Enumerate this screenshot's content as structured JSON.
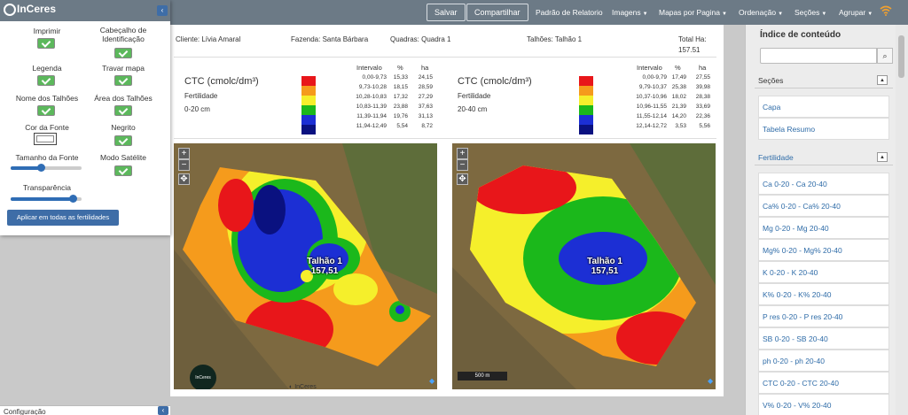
{
  "navbar": {
    "save": "Salvar",
    "share": "Compartilhar",
    "links": [
      {
        "label": "Padrão de Relatorio",
        "caret": false
      },
      {
        "label": "Imagens",
        "caret": true
      },
      {
        "label": "Mapas por Pagina",
        "caret": true
      },
      {
        "label": "Ordenação",
        "caret": true
      },
      {
        "label": "Seções",
        "caret": true
      },
      {
        "label": "Agrupar",
        "caret": true
      }
    ],
    "wifi_icon": "wifi-icon"
  },
  "settings": {
    "logo": "InCeres",
    "options": {
      "imprimir": "Imprimir",
      "cabecalho": "Cabeçalho de Identificação",
      "legenda": "Legenda",
      "travar_mapa": "Travar mapa",
      "nome_talhoes": "Nome dos Talhões",
      "area_talhoes": "Área dos Talhões",
      "cor_fonte": "Cor da Fonte",
      "negrito": "Negrito",
      "tamanho_fonte": "Tamanho da Fonte",
      "modo_satelite": "Modo Satélite",
      "transparencia": "Transparência"
    },
    "tamanho_fonte_level": 0.42,
    "transparencia_level": 0.88,
    "apply_button": "Aplicar em todas as fertilidades"
  },
  "report": {
    "cliente": "Cliente: Lívia Amaral",
    "fazenda": "Fazenda: Santa Bárbara",
    "quadras": "Quadras: Quadra 1",
    "talhoes": "Talhões: Talhão 1",
    "total_ha_label": "Total Ha:",
    "total_ha": "157.51",
    "legends": [
      {
        "title": "CTC (cmolc/dm³)",
        "sub1": "Fertilidade",
        "sub2": "0-20 cm",
        "headers": [
          "Intervalo",
          "%",
          "ha"
        ],
        "rows": [
          [
            "0,00-9,73",
            "15,33",
            "24,15"
          ],
          [
            "9,73-10,28",
            "18,15",
            "28,59"
          ],
          [
            "10,28-10,83",
            "17,32",
            "27,29"
          ],
          [
            "10,83-11,39",
            "23,88",
            "37,63"
          ],
          [
            "11,39-11,94",
            "19,76",
            "31,13"
          ],
          [
            "11,94-12,49",
            "5,54",
            "8,72"
          ]
        ]
      },
      {
        "title": "CTC (cmolc/dm³)",
        "sub1": "Fertilidade",
        "sub2": "20-40 cm",
        "headers": [
          "Intervalo",
          "%",
          "ha"
        ],
        "rows": [
          [
            "0,00-9,79",
            "17,49",
            "27,55"
          ],
          [
            "9,79-10,37",
            "25,38",
            "39,98"
          ],
          [
            "10,37-10,96",
            "18,02",
            "28,38"
          ],
          [
            "10,96-11,55",
            "21,39",
            "33,69"
          ],
          [
            "11,55-12,14",
            "14,20",
            "22,36"
          ],
          [
            "12,14-12,72",
            "3,53",
            "5,56"
          ]
        ]
      }
    ],
    "legend_colors": [
      "#e8161a",
      "#f59b1c",
      "#f5ef2b",
      "#1bb81b",
      "#1c2fd4",
      "#0a1180"
    ],
    "map_label_name": "Talhão 1",
    "map_label_area": "157,51",
    "scale": "500 m",
    "map_logo": "InCeres",
    "footer_logo": "InCeres"
  },
  "index": {
    "title": "Índice de conteúdo",
    "search_placeholder": "",
    "sections_head": "Seções",
    "sections": [
      "Capa",
      "Tabela Resumo"
    ],
    "fert_head": "Fertilidade",
    "fert_items": [
      "Ca 0-20 - Ca 20-40",
      "Ca% 0-20 - Ca% 20-40",
      "Mg 0-20 - Mg 20-40",
      "Mg% 0-20 - Mg% 20-40",
      "K 0-20 - K 20-40",
      "K% 0-20 - K% 20-40",
      "P res 0-20 - P res 20-40",
      "SB 0-20 - SB 20-40",
      "ph 0-20 - ph 20-40",
      "CTC 0-20 - CTC 20-40",
      "V% 0-20 - V% 20-40"
    ]
  },
  "bottom": {
    "label": "Configuração"
  }
}
